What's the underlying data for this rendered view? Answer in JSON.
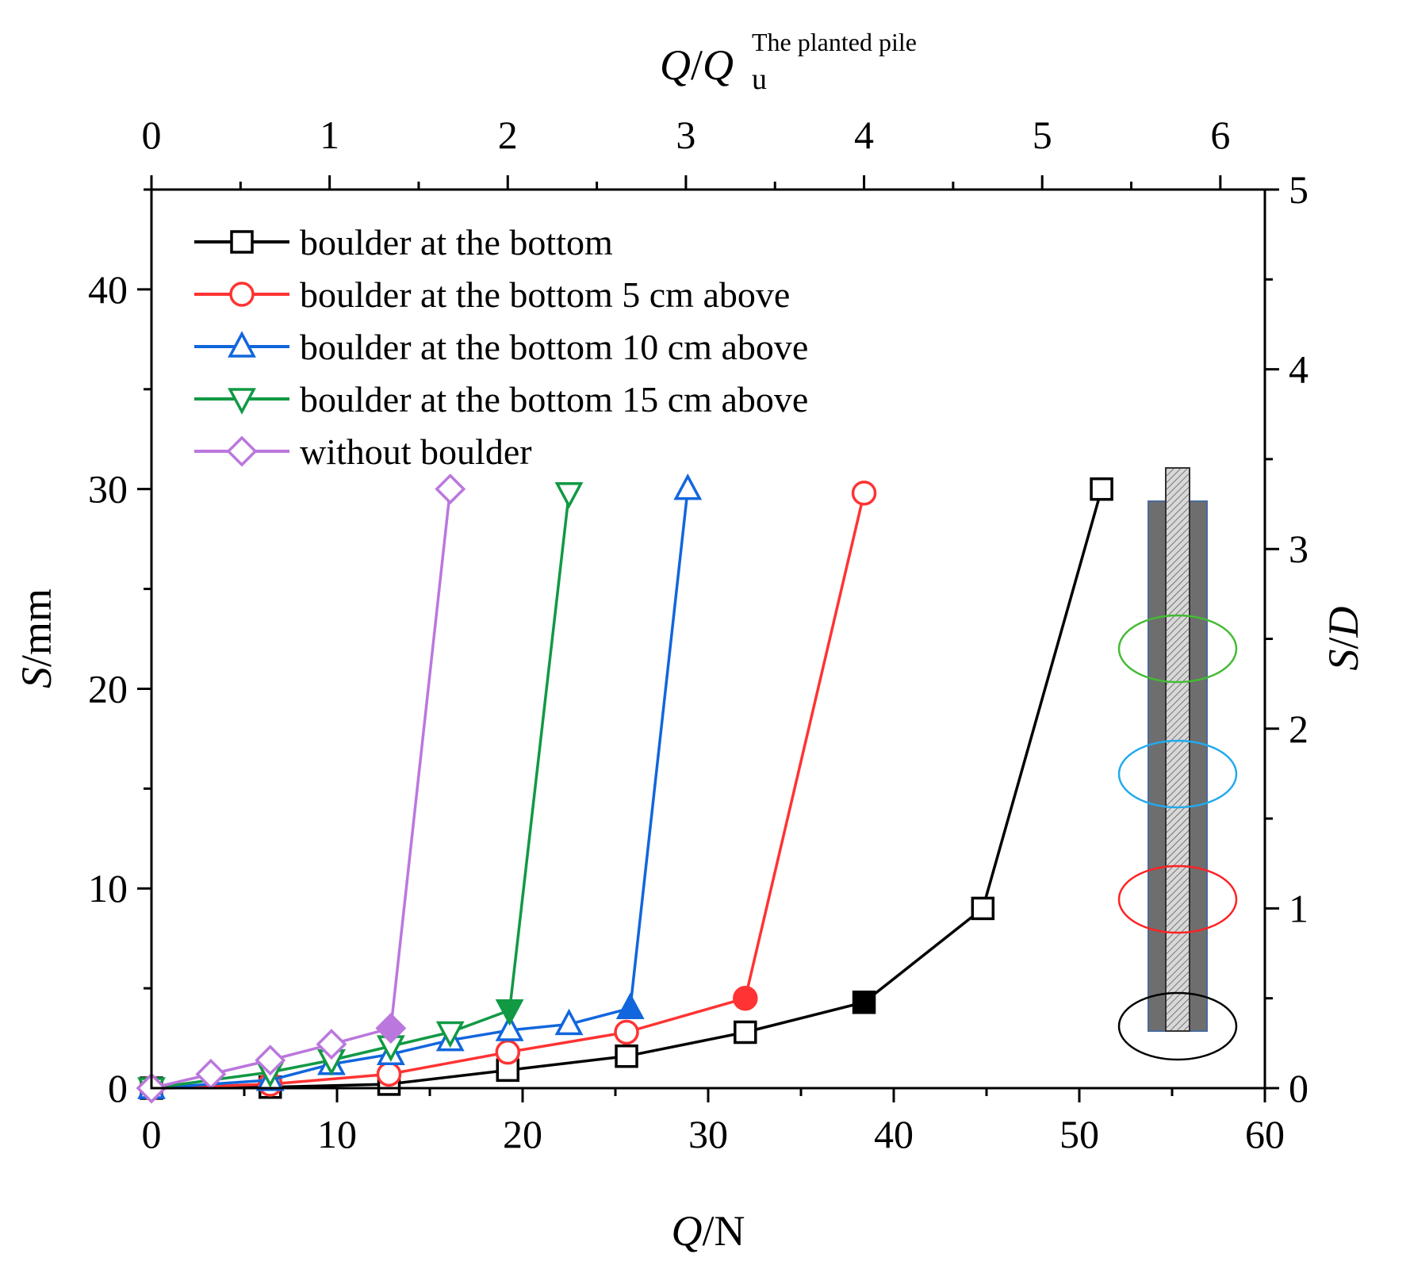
{
  "chart_data": {
    "type": "line",
    "xlabel_italic": "Q",
    "xlabel_rest": "/N",
    "ylabel_italic": "S",
    "ylabel_rest": "/mm",
    "y2label_italic_1": "S",
    "y2label_sep": "/",
    "y2label_italic_2": "D",
    "x2label_italic_1": "Q",
    "x2label_sep": "/",
    "x2label_italic_2": "Q",
    "x2label_sub": "u",
    "x2label_sup": "The planted pile",
    "xlim": [
      0,
      60
    ],
    "ylim": [
      0,
      45
    ],
    "y2lim": [
      0,
      5
    ],
    "x2lim": [
      0,
      6.25
    ],
    "x_ticks": [
      "0",
      "10",
      "20",
      "30",
      "40",
      "50",
      "60"
    ],
    "y_ticks": [
      "0",
      "10",
      "20",
      "30",
      "40"
    ],
    "y2_ticks": [
      "0",
      "1",
      "2",
      "3",
      "4",
      "5"
    ],
    "x2_ticks": [
      "0",
      "1",
      "2",
      "3",
      "4",
      "5",
      "6"
    ],
    "series": [
      {
        "name": "boulder at the bottom",
        "color": "#000000",
        "marker": "square",
        "x": [
          0,
          6.4,
          12.8,
          19.2,
          25.6,
          32.0,
          38.4,
          44.8,
          51.2
        ],
        "y": [
          0,
          0.05,
          0.2,
          0.9,
          1.6,
          2.8,
          4.3,
          9.0,
          30.0
        ],
        "filled_index": 6
      },
      {
        "name": "boulder at the bottom 5 cm above",
        "color": "#ff3333",
        "marker": "circle",
        "x": [
          0,
          6.4,
          12.8,
          19.2,
          25.6,
          32.0,
          38.4
        ],
        "y": [
          0,
          0.2,
          0.7,
          1.8,
          2.8,
          4.5,
          29.8
        ],
        "filled_index": 5
      },
      {
        "name": "boulder at the bottom 10 cm above",
        "color": "#1166dd",
        "marker": "triangle-up",
        "x": [
          0,
          6.4,
          9.7,
          12.9,
          16.1,
          19.3,
          22.5,
          25.8,
          28.9
        ],
        "y": [
          0,
          0.4,
          1.2,
          1.7,
          2.4,
          2.9,
          3.2,
          4.0,
          30.0
        ],
        "filled_index": 7
      },
      {
        "name": "boulder at the bottom 15 cm above",
        "color": "#119944",
        "marker": "triangle-down",
        "x": [
          0,
          6.4,
          9.7,
          12.9,
          16.1,
          19.3,
          22.5
        ],
        "y": [
          0,
          0.8,
          1.4,
          2.1,
          2.8,
          3.9,
          29.8
        ],
        "filled_index": 5
      },
      {
        "name": "without boulder",
        "color": "#bb77dd",
        "marker": "diamond",
        "x": [
          0,
          3.2,
          6.4,
          9.7,
          12.9,
          16.1
        ],
        "y": [
          0,
          0.7,
          1.4,
          2.2,
          3.0,
          30.0
        ],
        "filled_index": 4
      }
    ]
  },
  "inset": {
    "pile_color": "#6e6e6e",
    "core_color": "#d8d8d8",
    "boulder_colors": [
      "#44bb33",
      "#22aaee",
      "#ff2222",
      "#000000"
    ]
  }
}
